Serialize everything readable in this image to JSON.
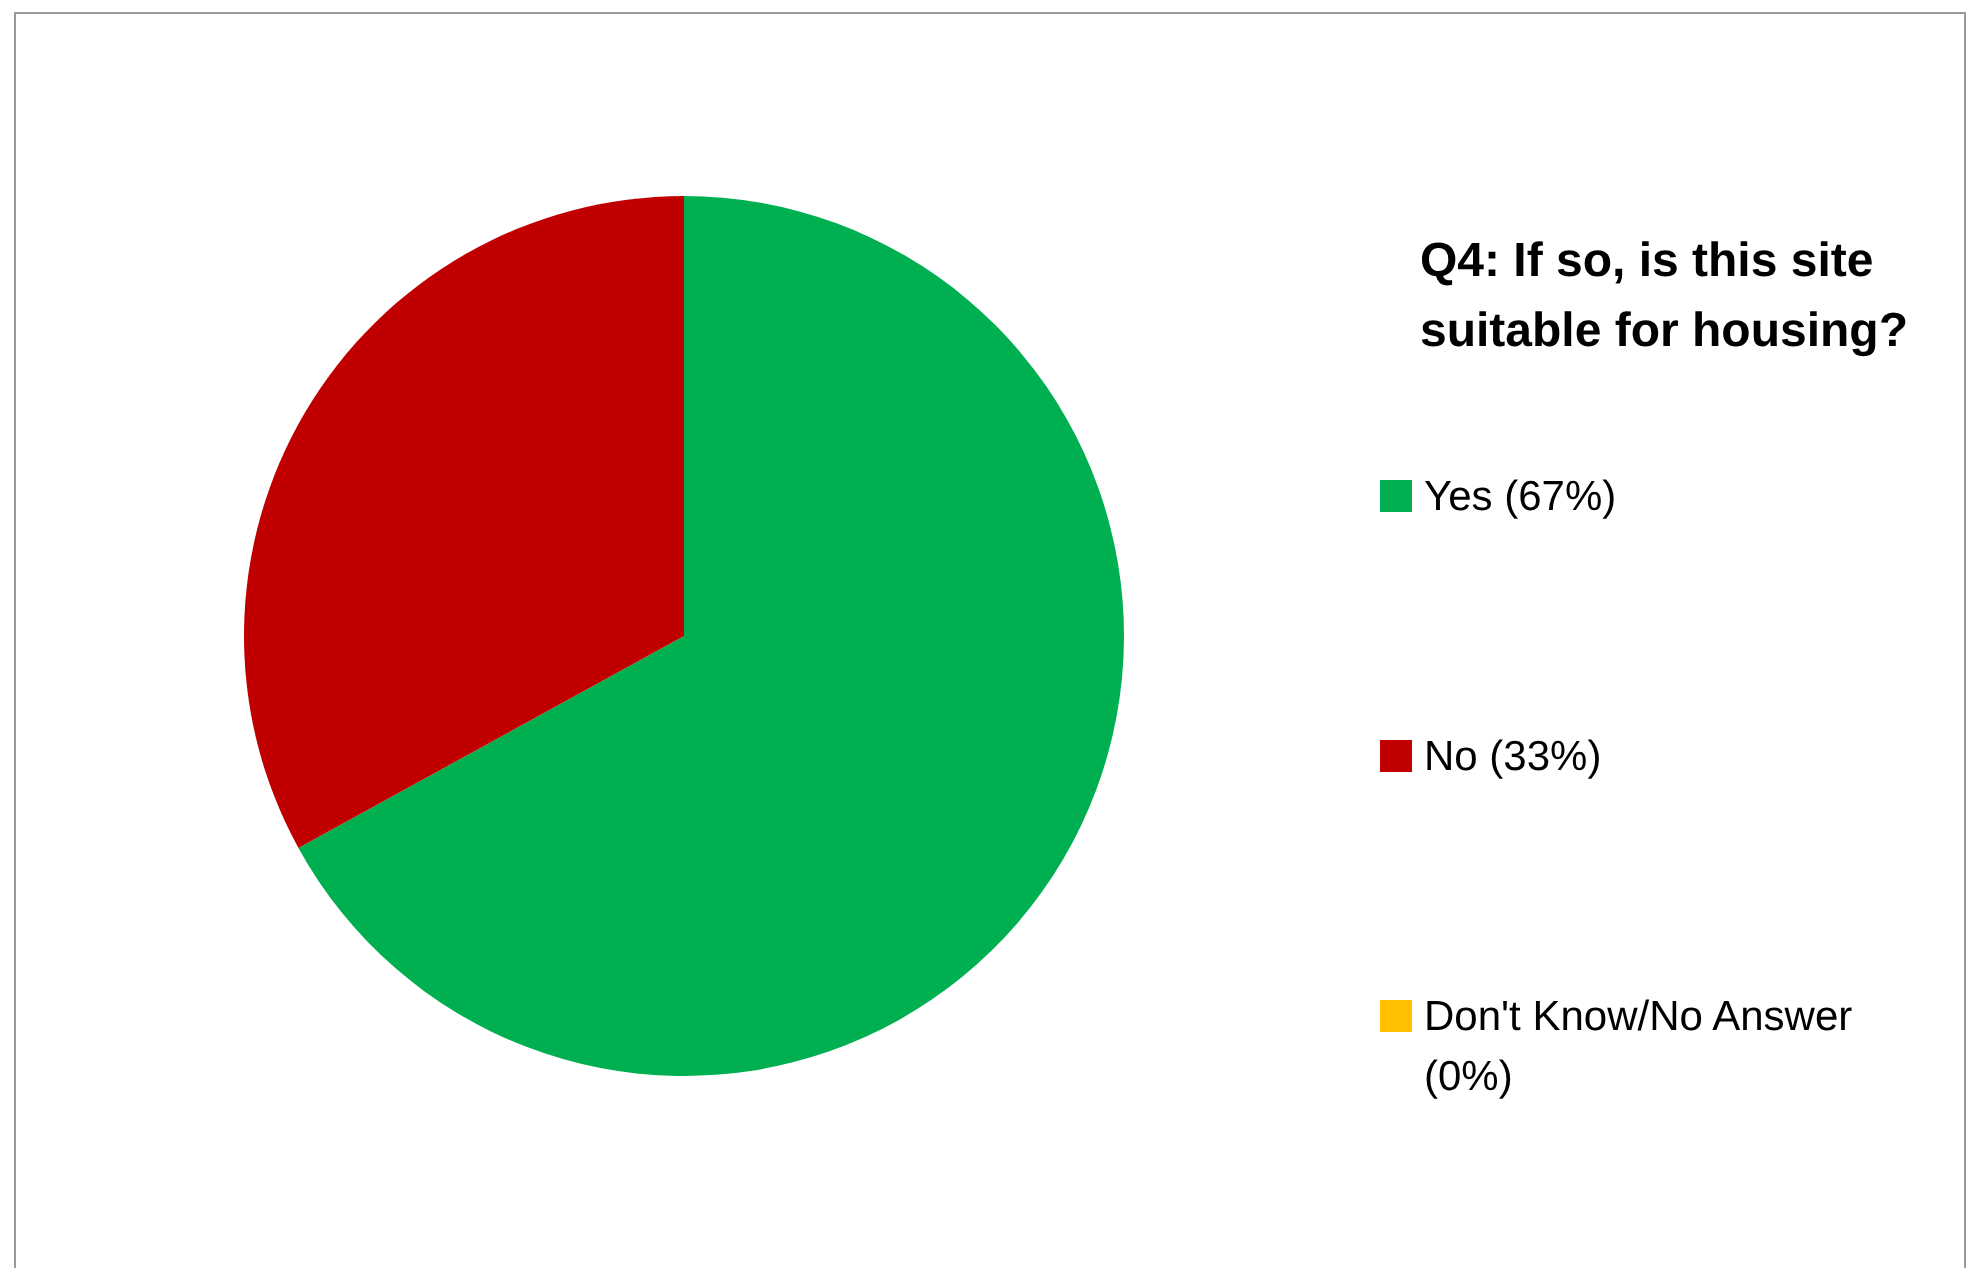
{
  "chart_data": {
    "type": "pie",
    "title": "Q4: If so, is this site suitable for housing?",
    "categories": [
      "Yes (67%)",
      "No (33%)",
      "Don't Know/No Answer (0%)"
    ],
    "values": [
      67,
      33,
      0
    ],
    "colors": [
      "#00b050",
      "#c00000",
      "#ffc000"
    ],
    "legend": "right"
  }
}
